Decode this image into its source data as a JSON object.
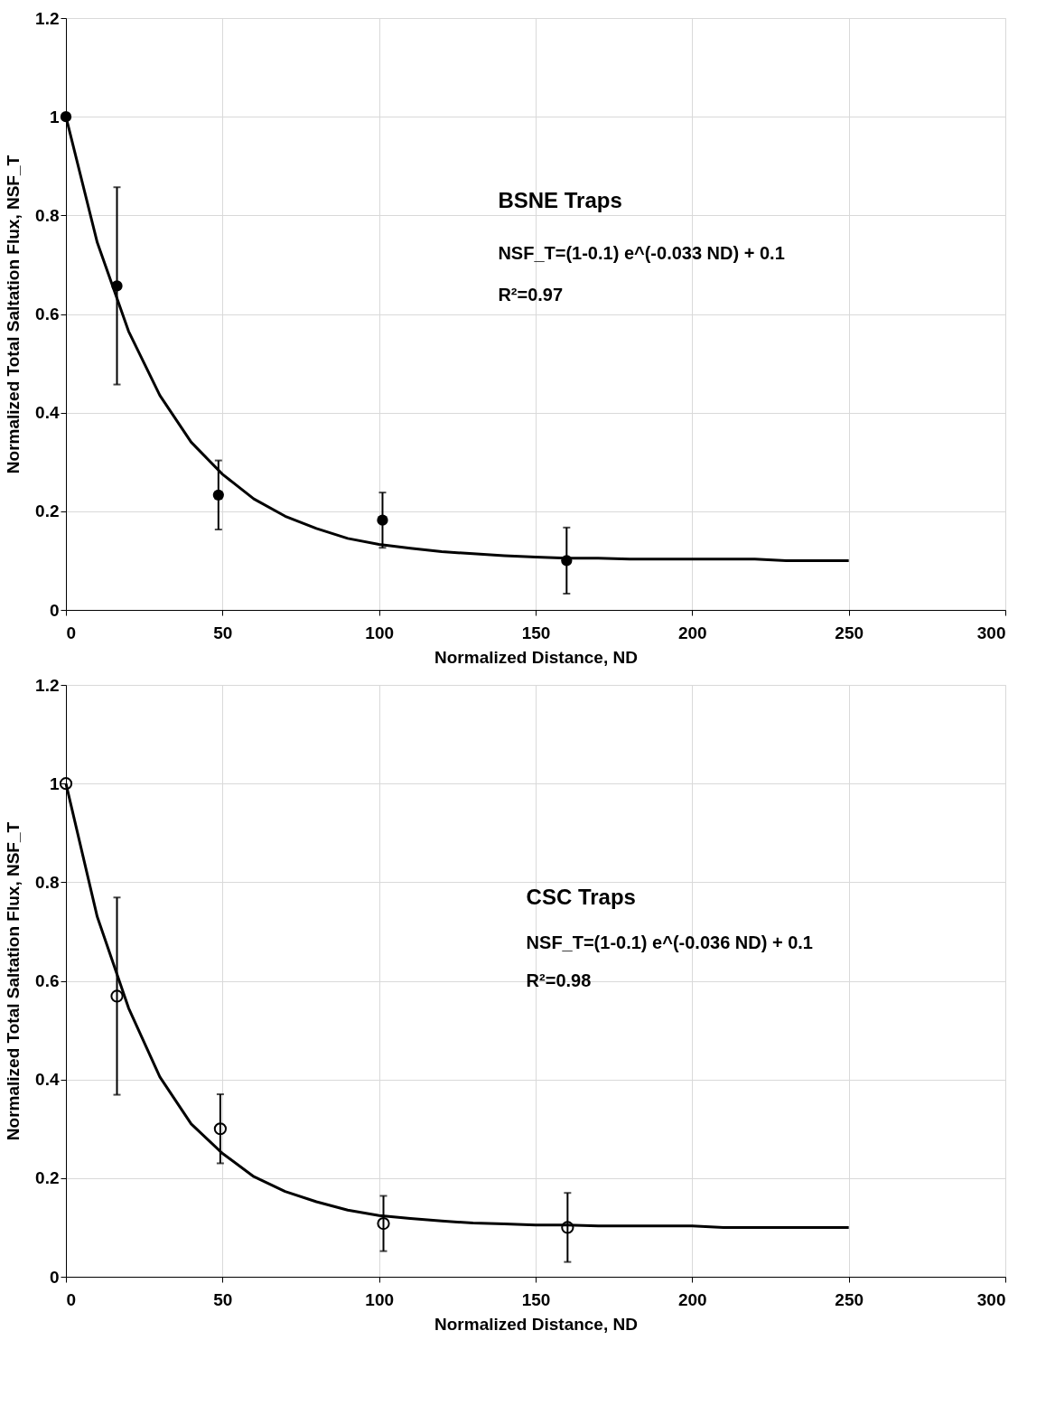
{
  "chart_data": [
    {
      "type": "scatter",
      "xlabel": "Normalized  Distance, ND",
      "ylabel": "Normalized Total Saltation Flux, NSF_T",
      "xlim": [
        0,
        300
      ],
      "xticks": [
        0,
        50,
        100,
        150,
        200,
        250,
        300
      ],
      "ylim": [
        0,
        1.2
      ],
      "yticks": [
        0,
        0.2,
        0.4,
        0.6,
        0.8,
        1,
        1.2
      ],
      "grid": true,
      "legend": false,
      "annotations": [
        "BSNE Traps",
        "NSF_T=(1-0.1) e^(-0.033 ND) + 0.1",
        "R²=0.97"
      ],
      "series": [
        {
          "marker": "circle",
          "color": "#000000",
          "x": [
            0,
            16.3,
            48.7,
            101.1,
            159.9
          ],
          "values": [
            1,
            0.657,
            0.233,
            0.182,
            0.1
          ],
          "errors": [
            null,
            0.2,
            0.07,
            0.056,
            0.067
          ]
        },
        {
          "type": "line",
          "color": "#000000",
          "x": [
            0,
            10,
            20,
            30,
            40,
            50,
            60,
            70,
            80,
            90,
            100,
            110,
            120,
            130,
            140,
            150,
            160,
            170,
            180,
            190,
            200,
            220,
            230,
            250
          ],
          "values": [
            1,
            0.745,
            0.565,
            0.435,
            0.34,
            0.275,
            0.225,
            0.19,
            0.165,
            0.145,
            0.133,
            0.125,
            0.118,
            0.114,
            0.11,
            0.107,
            0.105,
            0.105,
            0.103,
            0.103,
            0.103,
            0.103,
            0.1,
            0.1
          ]
        }
      ]
    },
    {
      "type": "scatter",
      "xlabel": "Normalized  Distance, ND",
      "ylabel": "Normalized Total Saltation Flux, NSF_T",
      "xlim": [
        0,
        300
      ],
      "xticks": [
        0,
        50,
        100,
        150,
        200,
        250,
        300
      ],
      "ylim": [
        0,
        1.2
      ],
      "yticks": [
        0,
        0.2,
        0.4,
        0.6,
        0.8,
        1,
        1.2
      ],
      "grid": true,
      "legend": false,
      "annotations": [
        "CSC Traps",
        "NSF_T=(1-0.1) e^(-0.036 ND) + 0.1",
        "R²=0.98"
      ],
      "series": [
        {
          "marker": "circle",
          "color": "#000000",
          "x": [
            0,
            16.3,
            49.3,
            101.4,
            160.2
          ],
          "values": [
            1,
            0.569,
            0.3,
            0.108,
            0.1
          ],
          "errors": [
            null,
            0.2,
            0.07,
            0.056,
            0.07
          ]
        },
        {
          "type": "line",
          "color": "#000000",
          "x": [
            0,
            10,
            20,
            30,
            40,
            50,
            60,
            70,
            80,
            90,
            100,
            110,
            120,
            130,
            140,
            150,
            160,
            170,
            200,
            210,
            250
          ],
          "values": [
            1,
            0.73,
            0.545,
            0.405,
            0.31,
            0.25,
            0.203,
            0.173,
            0.152,
            0.135,
            0.124,
            0.118,
            0.113,
            0.109,
            0.107,
            0.105,
            0.105,
            0.103,
            0.103,
            0.1,
            0.1
          ]
        }
      ]
    }
  ]
}
